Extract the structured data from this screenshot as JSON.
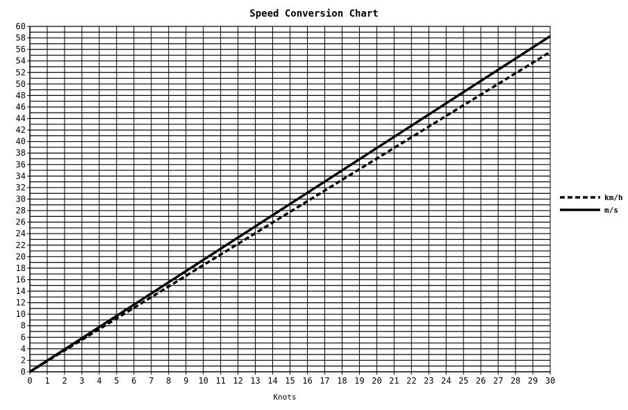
{
  "chart_data": {
    "type": "line",
    "title": "Speed Conversion Chart",
    "xlabel": "Knots",
    "ylabel": "",
    "xlim": [
      0,
      30
    ],
    "ylim": [
      0,
      60
    ],
    "x_ticks": [
      0,
      1,
      2,
      3,
      4,
      5,
      6,
      7,
      8,
      9,
      10,
      11,
      12,
      13,
      14,
      15,
      16,
      17,
      18,
      19,
      20,
      21,
      22,
      23,
      24,
      25,
      26,
      27,
      28,
      29,
      30
    ],
    "y_ticks": [
      0,
      2,
      4,
      6,
      8,
      10,
      12,
      14,
      16,
      18,
      20,
      22,
      24,
      26,
      28,
      30,
      32,
      34,
      36,
      38,
      40,
      42,
      44,
      46,
      48,
      50,
      52,
      54,
      56,
      58,
      60
    ],
    "grid": "horizontal-minor-and-vertical",
    "legend_position": "right",
    "series": [
      {
        "name": "km/h",
        "style": "dashed",
        "color": "#000000",
        "x": [
          0,
          30
        ],
        "y": [
          0,
          55.56
        ]
      },
      {
        "name": "m/s",
        "style": "solid",
        "color": "#000000",
        "x": [
          0,
          30
        ],
        "y": [
          0,
          58.3
        ]
      }
    ]
  }
}
